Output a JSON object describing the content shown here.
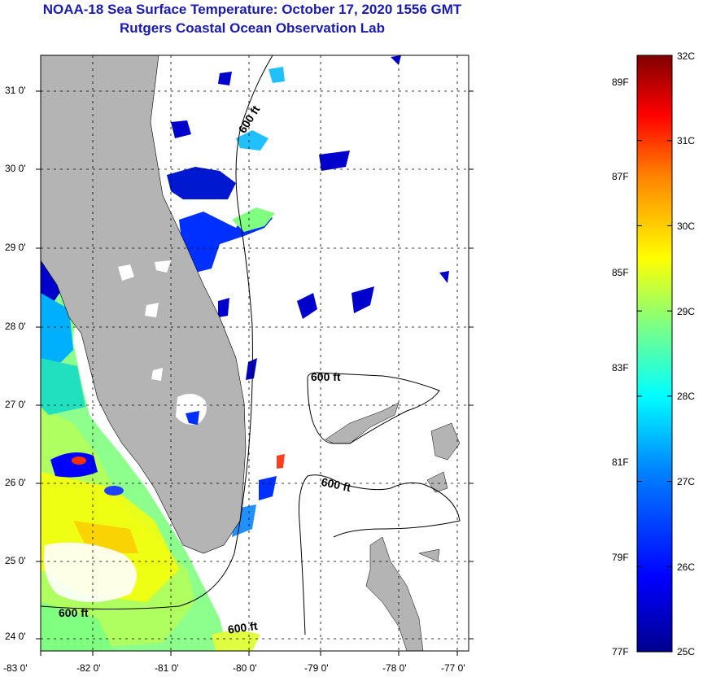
{
  "title_line1": "NOAA-18 Sea Surface Temperature:  October 17, 2020 1556 GMT",
  "title_line2": "Rutgers Coastal Ocean Observation Lab",
  "map": {
    "lat_labels": [
      "31 0'",
      "30 0'",
      "29 0'",
      "28 0'",
      "27 0'",
      "26 0'",
      "25 0'",
      "24 0'"
    ],
    "lon_labels": [
      "-83 0'",
      "-82 0'",
      "-81 0'",
      "-80 0'",
      "-79 0'",
      "-78 0'",
      "-77 0'"
    ],
    "contour_label": "600 ft",
    "land_color": "#b4b4b4",
    "no_data_color": "#ffffff"
  },
  "colorbar": {
    "min_c": 25,
    "max_c": 32,
    "celsius_labels": [
      "32C",
      "31C",
      "30C",
      "29C",
      "28C",
      "27C",
      "26C",
      "25C"
    ],
    "fahrenheit_labels": [
      "89F",
      "87F",
      "85F",
      "83F",
      "81F",
      "79F",
      "77F"
    ],
    "colors": [
      "#00008f",
      "#0000ff",
      "#0080ff",
      "#00ffff",
      "#80ff80",
      "#ffff00",
      "#ff8000",
      "#ff0000",
      "#800000"
    ]
  }
}
